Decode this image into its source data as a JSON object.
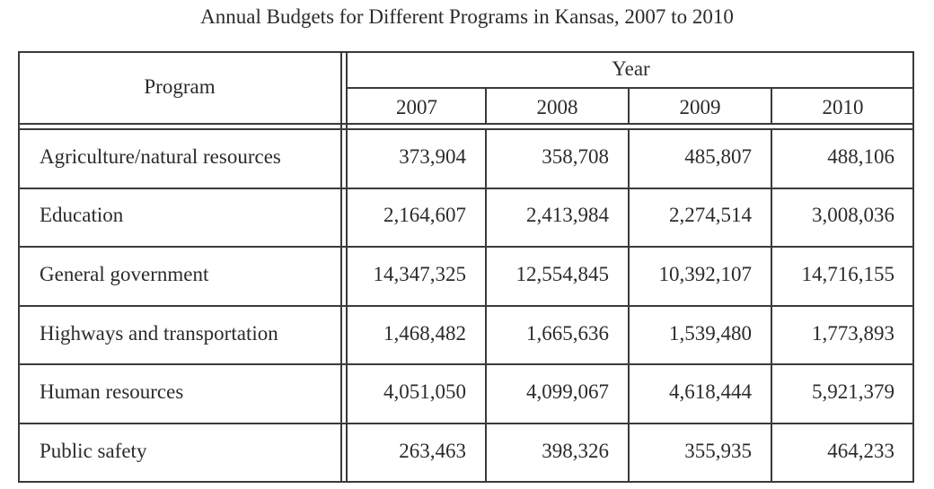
{
  "title": "Annual Budgets for Different Programs in Kansas, 2007 to 2010",
  "table": {
    "program_header": "Program",
    "year_header": "Year",
    "years": [
      "2007",
      "2008",
      "2009",
      "2010"
    ],
    "rows": [
      {
        "program": "Agriculture/natural resources",
        "values": [
          "373,904",
          "358,708",
          "485,807",
          "488,106"
        ]
      },
      {
        "program": "Education",
        "values": [
          "2,164,607",
          "2,413,984",
          "2,274,514",
          "3,008,036"
        ]
      },
      {
        "program": "General government",
        "values": [
          "14,347,325",
          "12,554,845",
          "10,392,107",
          "14,716,155"
        ]
      },
      {
        "program": "Highways and transportation",
        "values": [
          "1,468,482",
          "1,665,636",
          "1,539,480",
          "1,773,893"
        ]
      },
      {
        "program": "Human resources",
        "values": [
          "4,051,050",
          "4,099,067",
          "4,618,444",
          "5,921,379"
        ]
      },
      {
        "program": "Public safety",
        "values": [
          "263,463",
          "398,326",
          "355,935",
          "464,233"
        ]
      }
    ]
  },
  "chart_data": {
    "type": "table",
    "title": "Annual Budgets for Different Programs in Kansas, 2007 to 2010",
    "columns": [
      "Program",
      "2007",
      "2008",
      "2009",
      "2010"
    ],
    "column_group": "Year",
    "rows": [
      [
        "Agriculture/natural resources",
        373904,
        358708,
        485807,
        488106
      ],
      [
        "Education",
        2164607,
        2413984,
        2274514,
        3008036
      ],
      [
        "General government",
        14347325,
        12554845,
        10392107,
        14716155
      ],
      [
        "Highways and transportation",
        1468482,
        1665636,
        1539480,
        1773893
      ],
      [
        "Human resources",
        4051050,
        4099067,
        4618444,
        5921379
      ],
      [
        "Public safety",
        263463,
        398326,
        355935,
        464233
      ]
    ]
  }
}
